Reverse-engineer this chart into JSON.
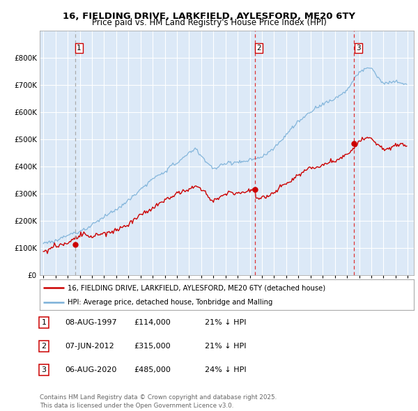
{
  "title_line1": "16, FIELDING DRIVE, LARKFIELD, AYLESFORD, ME20 6TY",
  "title_line2": "Price paid vs. HM Land Registry's House Price Index (HPI)",
  "plot_bg": "#dce9f7",
  "grid_color": "#c8d8ee",
  "sale_color": "#cc0000",
  "hpi_color": "#7ab0d8",
  "sale_times": [
    1997.6,
    2012.42,
    2020.58
  ],
  "sale_prices": [
    114000,
    315000,
    485000
  ],
  "sale_labels": [
    "1",
    "2",
    "3"
  ],
  "sale_info": [
    {
      "num": "1",
      "date": "08-AUG-1997",
      "price": "£114,000",
      "pct": "21% ↓ HPI"
    },
    {
      "num": "2",
      "date": "07-JUN-2012",
      "price": "£315,000",
      "pct": "21% ↓ HPI"
    },
    {
      "num": "3",
      "date": "06-AUG-2020",
      "price": "£485,000",
      "pct": "24% ↓ HPI"
    }
  ],
  "legend_line1": "16, FIELDING DRIVE, LARKFIELD, AYLESFORD, ME20 6TY (detached house)",
  "legend_line2": "HPI: Average price, detached house, Tonbridge and Malling",
  "footer": "Contains HM Land Registry data © Crown copyright and database right 2025.\nThis data is licensed under the Open Government Licence v3.0.",
  "ylim": [
    0,
    900000
  ],
  "yticks": [
    0,
    100000,
    200000,
    300000,
    400000,
    500000,
    600000,
    700000,
    800000
  ],
  "yticklabels": [
    "£0",
    "£100K",
    "£200K",
    "£300K",
    "£400K",
    "£500K",
    "£600K",
    "£700K",
    "£800K"
  ],
  "xlim_start": 1994.7,
  "xlim_end": 2025.5
}
